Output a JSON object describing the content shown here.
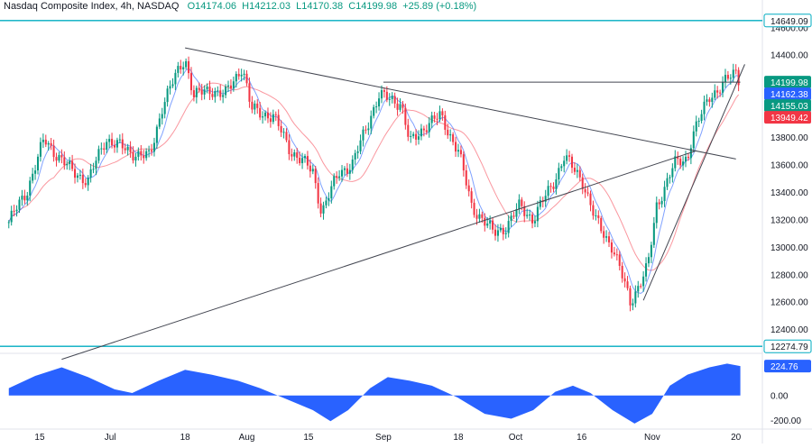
{
  "header": {
    "symbol": "Nasdaq Composite Index, 4h, NASDAQ",
    "open": "O14174.06",
    "high": "H14212.03",
    "low": "L14170.38",
    "close": "C14199.98",
    "change": "+25.89 (+0.18%)"
  },
  "colors": {
    "up": "#089981",
    "down": "#f23645",
    "ma_fast": "#2962ff",
    "ma_slow": "#f7525f",
    "level_line": "#00acc1",
    "trendline": "#434651",
    "oscillator": "#2962ff",
    "badge_dark": "#131722",
    "badge_blue": "#2962ff",
    "badge_red": "#f23645",
    "badge_teal": "#089981"
  },
  "chart_data": {
    "type": "candlestick",
    "title": "Nasdaq Composite Index, 4h, NASDAQ",
    "y_axis": {
      "ticks": [
        12400,
        12600,
        12800,
        13000,
        13200,
        13400,
        13600,
        13800,
        14000,
        14200,
        14400,
        14600
      ],
      "tick_labels": [
        "12400.00",
        "12600.00",
        "12800.00",
        "13000.00",
        "13200.00",
        "13400.00",
        "13600.00",
        "13800.00",
        "14000.00",
        "14200.00",
        "14400.00",
        "14600.00"
      ],
      "range": [
        12250,
        14720
      ]
    },
    "x_axis": {
      "ticks": [
        {
          "label": "15",
          "date": "2023-06-15"
        },
        {
          "label": "Jul",
          "date": "2023-07-01"
        },
        {
          "label": "18",
          "date": "2023-07-18"
        },
        {
          "label": "Aug",
          "date": "2023-08-01"
        },
        {
          "label": "15",
          "date": "2023-08-15"
        },
        {
          "label": "Sep",
          "date": "2023-09-01"
        },
        {
          "label": "18",
          "date": "2023-09-18"
        },
        {
          "label": "Oct",
          "date": "2023-10-01"
        },
        {
          "label": "16",
          "date": "2023-10-16"
        },
        {
          "label": "Nov",
          "date": "2023-11-01"
        },
        {
          "label": "20",
          "date": "2023-11-20"
        }
      ]
    },
    "price_path": [
      [
        "2023-06-08",
        13180
      ],
      [
        "2023-06-12",
        13400
      ],
      [
        "2023-06-16",
        13780
      ],
      [
        "2023-06-22",
        13560
      ],
      [
        "2023-06-26",
        13480
      ],
      [
        "2023-06-30",
        13790
      ],
      [
        "2023-07-05",
        13700
      ],
      [
        "2023-07-10",
        13650
      ],
      [
        "2023-07-13",
        14050
      ],
      [
        "2023-07-18",
        14380
      ],
      [
        "2023-07-20",
        14100
      ],
      [
        "2023-07-24",
        14150
      ],
      [
        "2023-07-27",
        14100
      ],
      [
        "2023-07-31",
        14320
      ],
      [
        "2023-08-02",
        14000
      ],
      [
        "2023-08-07",
        13950
      ],
      [
        "2023-08-11",
        13700
      ],
      [
        "2023-08-16",
        13550
      ],
      [
        "2023-08-18",
        13250
      ],
      [
        "2023-08-22",
        13550
      ],
      [
        "2023-08-25",
        13600
      ],
      [
        "2023-08-29",
        13950
      ],
      [
        "2023-08-31",
        14100
      ],
      [
        "2023-09-05",
        14050
      ],
      [
        "2023-09-07",
        13750
      ],
      [
        "2023-09-11",
        13900
      ],
      [
        "2023-09-14",
        13950
      ],
      [
        "2023-09-18",
        13700
      ],
      [
        "2023-09-21",
        13300
      ],
      [
        "2023-09-26",
        13100
      ],
      [
        "2023-09-29",
        13150
      ],
      [
        "2023-10-02",
        13300
      ],
      [
        "2023-10-05",
        13200
      ],
      [
        "2023-10-10",
        13500
      ],
      [
        "2023-10-12",
        13650
      ],
      [
        "2023-10-16",
        13500
      ],
      [
        "2023-10-19",
        13200
      ],
      [
        "2023-10-23",
        13000
      ],
      [
        "2023-10-26",
        12700
      ],
      [
        "2023-10-27",
        12600
      ],
      [
        "2023-10-31",
        12850
      ],
      [
        "2023-11-02",
        13300
      ],
      [
        "2023-11-06",
        13600
      ],
      [
        "2023-11-09",
        13650
      ],
      [
        "2023-11-10",
        13800
      ],
      [
        "2023-11-14",
        14100
      ],
      [
        "2023-11-16",
        14150
      ],
      [
        "2023-11-17",
        14180
      ],
      [
        "2023-11-20",
        14280
      ],
      [
        "2023-11-21",
        14199.98
      ]
    ],
    "ma_fast_lag_bars": 6,
    "ma_slow_lag_bars": 18,
    "horizontal_levels": [
      {
        "price": 14649.09,
        "label": "14649.09"
      },
      {
        "price": 12274.79,
        "label": "12274.79"
      }
    ],
    "trendlines": [
      {
        "from": [
          "2023-07-18",
          14450
        ],
        "to": [
          "2023-11-20",
          13640
        ]
      },
      {
        "from": [
          "2023-06-20",
          12180
        ],
        "to": [
          "2023-11-11",
          13700
        ]
      },
      {
        "from": [
          "2023-09-01",
          14200
        ],
        "to": [
          "2023-11-21",
          14200
        ]
      },
      {
        "from": [
          "2023-10-30",
          12610
        ],
        "to": [
          "2023-11-22",
          14330
        ]
      }
    ],
    "price_badges": [
      {
        "label": "14649.09",
        "price": 14649.09,
        "style": "light"
      },
      {
        "label": "14199.98",
        "price": 14199.98,
        "style": "teal"
      },
      {
        "label": "14162.38",
        "price": 14162.38,
        "style": "blue"
      },
      {
        "label": "14155.03",
        "price": 14155.03,
        "style": "teal"
      },
      {
        "label": "13949.42",
        "price": 13949.42,
        "style": "red"
      },
      {
        "label": "12274.79",
        "price": 12274.79,
        "style": "light"
      }
    ],
    "oscillator": {
      "ticks": [
        0,
        -200
      ],
      "tick_labels": [
        "0.00",
        "-200.00"
      ],
      "range": [
        -260,
        300
      ],
      "last_label": "224.76",
      "path": [
        [
          "2023-06-08",
          60
        ],
        [
          "2023-06-14",
          160
        ],
        [
          "2023-06-20",
          230
        ],
        [
          "2023-06-26",
          150
        ],
        [
          "2023-07-02",
          50
        ],
        [
          "2023-07-06",
          20
        ],
        [
          "2023-07-12",
          120
        ],
        [
          "2023-07-18",
          210
        ],
        [
          "2023-07-24",
          170
        ],
        [
          "2023-07-30",
          120
        ],
        [
          "2023-08-04",
          60
        ],
        [
          "2023-08-10",
          -30
        ],
        [
          "2023-08-16",
          -120
        ],
        [
          "2023-08-20",
          -210
        ],
        [
          "2023-08-24",
          -120
        ],
        [
          "2023-08-29",
          60
        ],
        [
          "2023-09-02",
          150
        ],
        [
          "2023-09-07",
          120
        ],
        [
          "2023-09-12",
          80
        ],
        [
          "2023-09-18",
          -20
        ],
        [
          "2023-09-24",
          -150
        ],
        [
          "2023-09-30",
          -190
        ],
        [
          "2023-10-05",
          -120
        ],
        [
          "2023-10-10",
          30
        ],
        [
          "2023-10-14",
          80
        ],
        [
          "2023-10-18",
          20
        ],
        [
          "2023-10-23",
          -120
        ],
        [
          "2023-10-28",
          -230
        ],
        [
          "2023-11-01",
          -150
        ],
        [
          "2023-11-05",
          80
        ],
        [
          "2023-11-09",
          170
        ],
        [
          "2023-11-14",
          230
        ],
        [
          "2023-11-18",
          260
        ],
        [
          "2023-11-21",
          240
        ]
      ]
    }
  }
}
